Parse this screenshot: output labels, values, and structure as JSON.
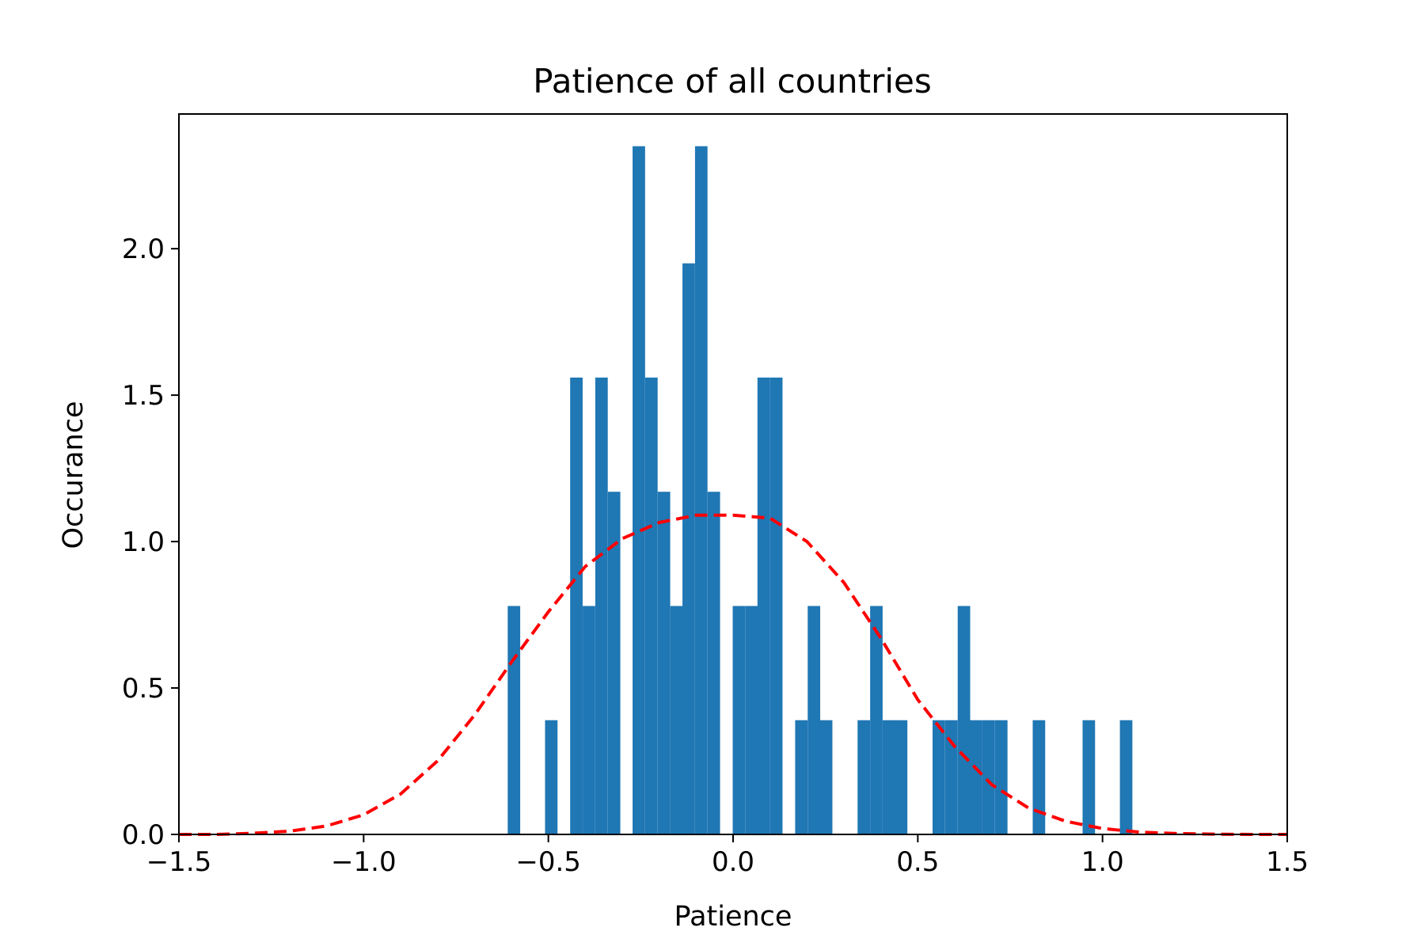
{
  "chart_data": {
    "type": "bar",
    "title": "Patience of all countries",
    "xlabel": "Patience",
    "ylabel": "Occurance",
    "xlim": [
      -1.5,
      1.5
    ],
    "ylim": [
      0,
      2.46
    ],
    "xticks": [
      {
        "value": -1.5,
        "label": "−1.5"
      },
      {
        "value": -1.0,
        "label": "−1.0"
      },
      {
        "value": -0.5,
        "label": "−0.5"
      },
      {
        "value": 0.0,
        "label": "0.0"
      },
      {
        "value": 0.5,
        "label": "0.5"
      },
      {
        "value": 1.0,
        "label": "1.0"
      },
      {
        "value": 1.5,
        "label": "1.5"
      }
    ],
    "yticks": [
      {
        "value": 0.0,
        "label": "0.0"
      },
      {
        "value": 0.5,
        "label": "0.5"
      },
      {
        "value": 1.0,
        "label": "1.0"
      },
      {
        "value": 1.5,
        "label": "1.5"
      },
      {
        "value": 2.0,
        "label": "2.0"
      }
    ],
    "grid": false,
    "bar_color": "#1f77b4",
    "bin_width": 0.0338,
    "bins": [
      {
        "left": -0.61,
        "value": 0.78
      },
      {
        "left": -0.509,
        "value": 0.39
      },
      {
        "left": -0.441,
        "value": 1.56
      },
      {
        "left": -0.407,
        "value": 0.78
      },
      {
        "left": -0.373,
        "value": 1.56
      },
      {
        "left": -0.339,
        "value": 1.17
      },
      {
        "left": -0.272,
        "value": 2.35
      },
      {
        "left": -0.238,
        "value": 1.56
      },
      {
        "left": -0.204,
        "value": 1.17
      },
      {
        "left": -0.17,
        "value": 0.78
      },
      {
        "left": -0.137,
        "value": 1.95
      },
      {
        "left": -0.103,
        "value": 2.35
      },
      {
        "left": -0.069,
        "value": 1.17
      },
      {
        "left": -0.001,
        "value": 0.78
      },
      {
        "left": 0.033,
        "value": 0.78
      },
      {
        "left": 0.066,
        "value": 1.56
      },
      {
        "left": 0.1,
        "value": 1.56
      },
      {
        "left": 0.168,
        "value": 0.39
      },
      {
        "left": 0.202,
        "value": 0.78
      },
      {
        "left": 0.235,
        "value": 0.39
      },
      {
        "left": 0.337,
        "value": 0.39
      },
      {
        "left": 0.371,
        "value": 0.78
      },
      {
        "left": 0.405,
        "value": 0.39
      },
      {
        "left": 0.438,
        "value": 0.39
      },
      {
        "left": 0.54,
        "value": 0.39
      },
      {
        "left": 0.574,
        "value": 0.39
      },
      {
        "left": 0.608,
        "value": 0.78
      },
      {
        "left": 0.641,
        "value": 0.39
      },
      {
        "left": 0.675,
        "value": 0.39
      },
      {
        "left": 0.709,
        "value": 0.39
      },
      {
        "left": 0.811,
        "value": 0.39
      },
      {
        "left": 0.946,
        "value": 0.39
      },
      {
        "left": 1.047,
        "value": 0.39
      }
    ],
    "curve": {
      "type": "line",
      "style": "dashed",
      "color": "#ff0000",
      "x": [
        -1.5,
        -1.4,
        -1.3,
        -1.2,
        -1.1,
        -1.0,
        -0.9,
        -0.8,
        -0.7,
        -0.6,
        -0.5,
        -0.4,
        -0.3,
        -0.2,
        -0.1,
        0.0,
        0.1,
        0.2,
        0.3,
        0.4,
        0.5,
        0.6,
        0.7,
        0.8,
        0.9,
        1.0,
        1.1,
        1.2,
        1.3,
        1.4,
        1.5
      ],
      "y": [
        0.0,
        0.0,
        0.004,
        0.011,
        0.029,
        0.067,
        0.138,
        0.251,
        0.407,
        0.588,
        0.76,
        0.915,
        1.01,
        1.065,
        1.09,
        1.09,
        1.08,
        1.0,
        0.86,
        0.67,
        0.46,
        0.3,
        0.17,
        0.09,
        0.045,
        0.02,
        0.008,
        0.003,
        0.001,
        0.0,
        0.0
      ]
    }
  }
}
